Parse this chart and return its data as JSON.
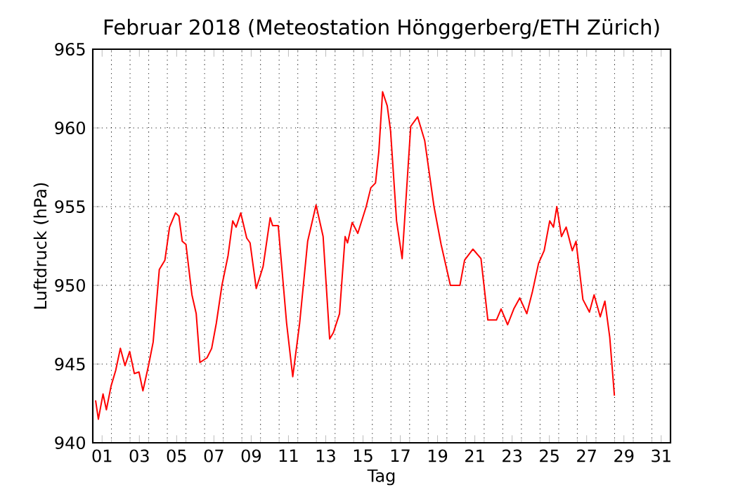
{
  "chart_data": {
    "type": "line",
    "title": "Februar 2018  (Meteostation Hönggerberg/ETH Zürich)",
    "xlabel": "Tag",
    "ylabel": "Luftdruck (hPa)",
    "xlim": [
      0.5,
      31.5
    ],
    "ylim": [
      940,
      965
    ],
    "xticks": [
      {
        "value": 1,
        "label": "01"
      },
      {
        "value": 3,
        "label": "03"
      },
      {
        "value": 5,
        "label": "05"
      },
      {
        "value": 7,
        "label": "07"
      },
      {
        "value": 9,
        "label": "09"
      },
      {
        "value": 11,
        "label": "11"
      },
      {
        "value": 13,
        "label": "13"
      },
      {
        "value": 15,
        "label": "15"
      },
      {
        "value": 17,
        "label": "17"
      },
      {
        "value": 19,
        "label": "19"
      },
      {
        "value": 21,
        "label": "21"
      },
      {
        "value": 23,
        "label": "23"
      },
      {
        "value": 25,
        "label": "25"
      },
      {
        "value": 27,
        "label": "27"
      },
      {
        "value": 29,
        "label": "29"
      },
      {
        "value": 31,
        "label": "31"
      },
      {
        "value": 1.5,
        "label": null
      },
      {
        "value": 2.5,
        "label": null
      },
      {
        "value": 3.5,
        "label": null
      },
      {
        "value": 4.5,
        "label": null
      },
      {
        "value": 5.5,
        "label": null
      },
      {
        "value": 6.5,
        "label": null
      },
      {
        "value": 7.5,
        "label": null
      },
      {
        "value": 8.5,
        "label": null
      },
      {
        "value": 9.5,
        "label": null
      },
      {
        "value": 10.5,
        "label": null
      },
      {
        "value": 11.5,
        "label": null
      },
      {
        "value": 12.5,
        "label": null
      },
      {
        "value": 13.5,
        "label": null
      },
      {
        "value": 14.5,
        "label": null
      },
      {
        "value": 15.5,
        "label": null
      },
      {
        "value": 16.5,
        "label": null
      },
      {
        "value": 17.5,
        "label": null
      },
      {
        "value": 18.5,
        "label": null
      },
      {
        "value": 19.5,
        "label": null
      },
      {
        "value": 20.5,
        "label": null
      },
      {
        "value": 21.5,
        "label": null
      },
      {
        "value": 22.5,
        "label": null
      },
      {
        "value": 23.5,
        "label": null
      },
      {
        "value": 24.5,
        "label": null
      },
      {
        "value": 25.5,
        "label": null
      },
      {
        "value": 26.5,
        "label": null
      },
      {
        "value": 27.5,
        "label": null
      },
      {
        "value": 28.5,
        "label": null
      },
      {
        "value": 29.5,
        "label": null
      },
      {
        "value": 30.5,
        "label": null
      }
    ],
    "yticks": [
      940,
      945,
      950,
      955,
      960,
      965
    ],
    "grid": true,
    "marker": "none",
    "line_style": "solid",
    "series": [
      {
        "color": "#ff0000",
        "x": [
          0.65,
          0.8,
          1.05,
          1.23,
          1.48,
          1.73,
          1.98,
          2.23,
          2.48,
          2.73,
          2.98,
          3.19,
          3.49,
          3.74,
          4.07,
          4.37,
          4.62,
          4.94,
          5.12,
          5.3,
          5.5,
          5.82,
          6.05,
          6.25,
          6.63,
          6.88,
          7.13,
          7.43,
          7.76,
          8.01,
          8.19,
          8.44,
          8.76,
          8.94,
          9.27,
          9.64,
          10.02,
          10.15,
          10.45,
          10.9,
          11.23,
          11.6,
          12.03,
          12.48,
          12.86,
          13.21,
          13.41,
          13.74,
          14.04,
          14.17,
          14.42,
          14.72,
          15.17,
          15.42,
          15.67,
          15.85,
          16.05,
          16.3,
          16.48,
          16.8,
          17.1,
          17.56,
          17.93,
          18.31,
          18.81,
          19.19,
          19.69,
          20.2,
          20.45,
          20.9,
          21.33,
          21.7,
          22.16,
          22.41,
          22.76,
          23.09,
          23.41,
          23.79,
          24.09,
          24.42,
          24.72,
          25.02,
          25.22,
          25.4,
          25.65,
          25.9,
          26.23,
          26.43,
          26.8,
          27.15,
          27.4,
          27.73,
          27.98,
          28.24,
          28.49
        ],
        "values": [
          942.7,
          941.5,
          943.1,
          942.1,
          943.6,
          944.6,
          946.0,
          944.9,
          945.8,
          944.4,
          944.5,
          943.3,
          944.9,
          946.4,
          951.0,
          951.6,
          953.7,
          954.6,
          954.4,
          952.8,
          952.6,
          949.4,
          948.2,
          945.1,
          945.4,
          946.0,
          947.6,
          950.0,
          951.9,
          954.1,
          953.7,
          954.6,
          953.0,
          952.7,
          949.8,
          951.2,
          954.3,
          953.8,
          953.8,
          947.6,
          944.2,
          947.6,
          952.8,
          955.1,
          953.1,
          946.6,
          947.0,
          948.2,
          953.1,
          952.7,
          954.0,
          953.3,
          955.0,
          956.2,
          956.5,
          958.5,
          962.3,
          961.4,
          959.8,
          954.1,
          951.7,
          960.1,
          960.7,
          959.2,
          955.0,
          952.6,
          950.0,
          950.0,
          951.6,
          952.3,
          951.7,
          947.8,
          947.8,
          948.5,
          947.5,
          948.5,
          949.2,
          948.2,
          949.6,
          951.4,
          952.2,
          954.1,
          953.7,
          955.0,
          953.1,
          953.7,
          952.2,
          952.8,
          949.1,
          948.3,
          949.4,
          948.0,
          949.0,
          946.7,
          943.0
        ]
      }
    ]
  }
}
